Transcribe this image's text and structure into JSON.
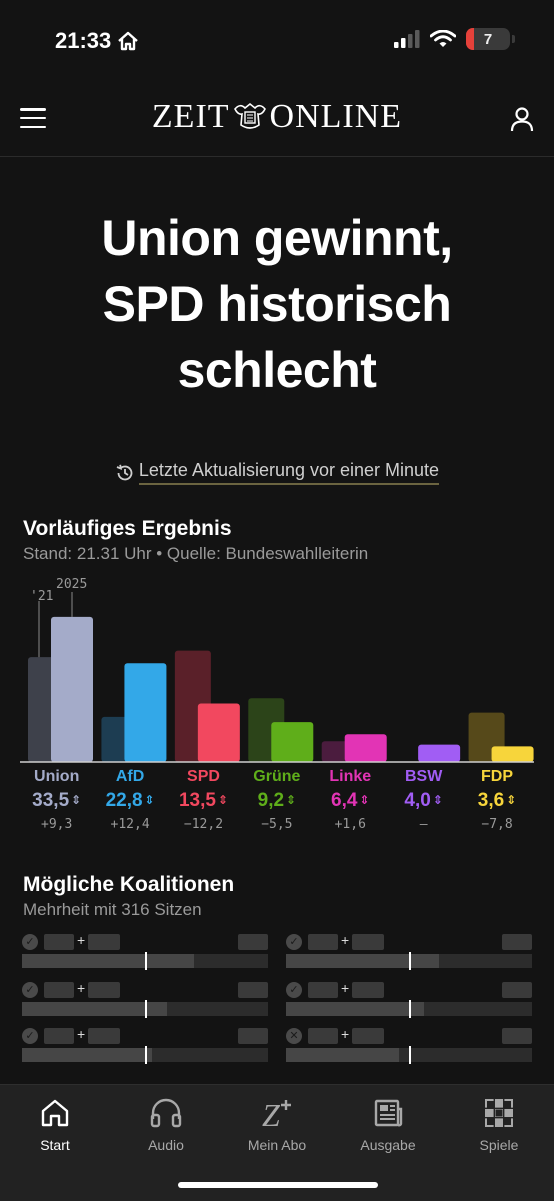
{
  "status_bar": {
    "time": "21:33",
    "battery": "7"
  },
  "header": {
    "logo_left": "ZEIT",
    "logo_right": "ONLINE"
  },
  "headline": {
    "line1": "Union gewinnt,",
    "line2": "SPD historisch",
    "line3": "schlecht"
  },
  "update": {
    "text": "Letzte Aktualisierung vor einer Minute"
  },
  "results": {
    "title": "Vorläufiges Ergebnis",
    "subtitle": "Stand: 21.31 Uhr • Quelle: Bundeswahlleiterin",
    "label_prev": "'21",
    "label_curr": "2025",
    "arrow": "⇕",
    "parties": [
      {
        "name": "Union",
        "pct": "33,5",
        "diff": "+9,3",
        "color": "#a4abc9"
      },
      {
        "name": "AfD",
        "pct": "22,8",
        "diff": "+12,4",
        "color": "#33a8e8"
      },
      {
        "name": "SPD",
        "pct": "13,5",
        "diff": "−12,2",
        "color": "#f2485f"
      },
      {
        "name": "Grüne",
        "pct": "9,2",
        "diff": "−5,5",
        "color": "#5fae1a"
      },
      {
        "name": "Linke",
        "pct": "6,4",
        "diff": "+1,6",
        "color": "#e234b5"
      },
      {
        "name": "BSW",
        "pct": "4,0",
        "diff": "–",
        "color": "#a15df4"
      },
      {
        "name": "FDP",
        "pct": "3,6",
        "diff": "−7,8",
        "color": "#f7d53b"
      }
    ]
  },
  "chart_data": {
    "type": "bar",
    "categories": [
      "Union",
      "AfD",
      "SPD",
      "Grüne",
      "Linke",
      "BSW",
      "FDP"
    ],
    "series": [
      {
        "name": "'21",
        "values": [
          24.2,
          10.4,
          25.7,
          14.7,
          4.8,
          0,
          11.4
        ]
      },
      {
        "name": "2025",
        "values": [
          33.5,
          22.8,
          13.5,
          9.2,
          6.4,
          4.0,
          3.6
        ]
      }
    ],
    "colors_2025": [
      "#a4abc9",
      "#33a8e8",
      "#f2485f",
      "#5fae1a",
      "#e234b5",
      "#a15df4",
      "#f7d53b"
    ],
    "colors_2021": [
      "#3e414b",
      "#1d3d52",
      "#5a2029",
      "#2c4419",
      "#4b1c3e",
      "#3a2452",
      "#56491a"
    ],
    "ylim": [
      0,
      36
    ]
  },
  "coalitions": {
    "title": "Mögliche Koalitionen",
    "subtitle": "Mehrheit mit 316 Sitzen",
    "plus": "+",
    "items": [
      {
        "status": "majority",
        "icon": "✓",
        "fill": 0.7
      },
      {
        "status": "majority",
        "icon": "✓",
        "fill": 0.62
      },
      {
        "status": "majority",
        "icon": "✓",
        "fill": 0.59
      },
      {
        "status": "majority",
        "icon": "✓",
        "fill": 0.56
      },
      {
        "status": "majority",
        "icon": "✓",
        "fill": 0.53
      },
      {
        "status": "no-majority",
        "icon": "✕",
        "fill": 0.46
      }
    ]
  },
  "tabbar": {
    "tabs": [
      {
        "label": "Start",
        "icon": "home-icon"
      },
      {
        "label": "Audio",
        "icon": "headphones-icon"
      },
      {
        "label": "Mein Abo",
        "icon": "z-plus-icon"
      },
      {
        "label": "Ausgabe",
        "icon": "newspaper-icon"
      },
      {
        "label": "Spiele",
        "icon": "crossword-icon"
      }
    ]
  }
}
